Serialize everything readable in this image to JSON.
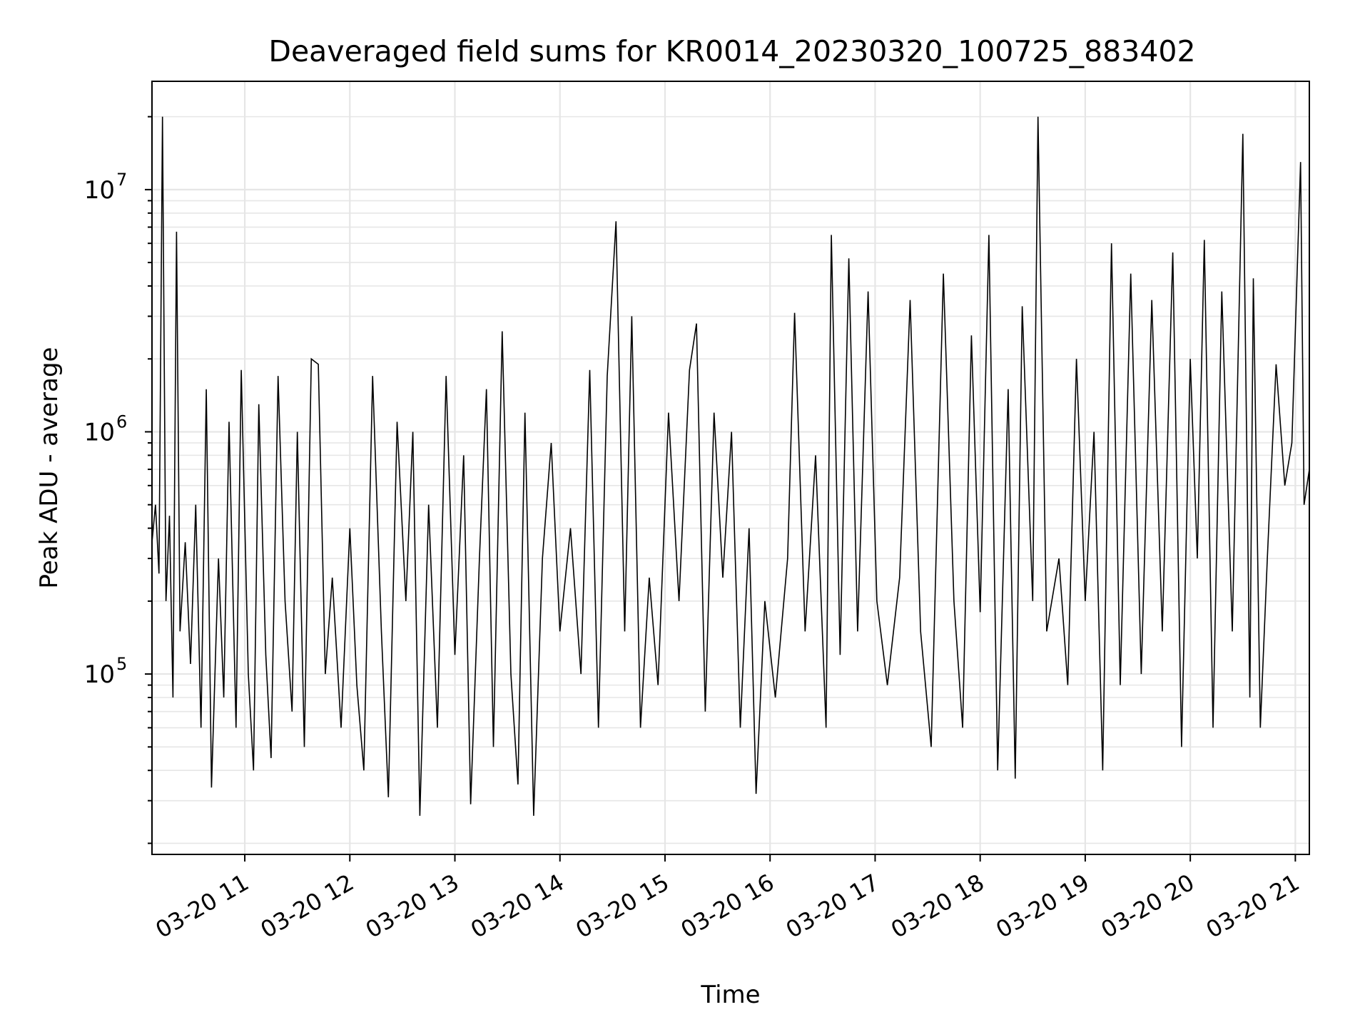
{
  "chart_data": {
    "type": "line",
    "title": "Deaveraged field sums for KR0014_20230320_100725_883402",
    "xlabel": "Time",
    "ylabel": "Peak ADU - average",
    "yscale": "log",
    "ylim": [
      18000,
      28000000
    ],
    "xlim": [
      "2023-03-20 10:07",
      "2023-03-20 21:08"
    ],
    "grid": true,
    "line_color": "#000000",
    "grid_color": "#e6e6e6",
    "x_ticks": [
      {
        "value": "2023-03-20 11:00",
        "label": "03-20 11"
      },
      {
        "value": "2023-03-20 12:00",
        "label": "03-20 12"
      },
      {
        "value": "2023-03-20 13:00",
        "label": "03-20 13"
      },
      {
        "value": "2023-03-20 14:00",
        "label": "03-20 14"
      },
      {
        "value": "2023-03-20 15:00",
        "label": "03-20 15"
      },
      {
        "value": "2023-03-20 16:00",
        "label": "03-20 16"
      },
      {
        "value": "2023-03-20 17:00",
        "label": "03-20 17"
      },
      {
        "value": "2023-03-20 18:00",
        "label": "03-20 18"
      },
      {
        "value": "2023-03-20 19:00",
        "label": "03-20 19"
      },
      {
        "value": "2023-03-20 20:00",
        "label": "03-20 20"
      },
      {
        "value": "2023-03-20 21:00",
        "label": "03-20 21"
      }
    ],
    "y_ticks": [
      {
        "value": 100000,
        "base": "10",
        "exp": "5"
      },
      {
        "value": 1000000,
        "base": "10",
        "exp": "6"
      },
      {
        "value": 10000000,
        "base": "10",
        "exp": "7"
      }
    ],
    "series": [
      {
        "points": [
          [
            "2023-03-20 10:07",
            350000
          ],
          [
            "2023-03-20 10:09",
            500000
          ],
          [
            "2023-03-20 10:11",
            260000
          ],
          [
            "2023-03-20 10:13",
            20000000
          ],
          [
            "2023-03-20 10:15",
            200000
          ],
          [
            "2023-03-20 10:17",
            450000
          ],
          [
            "2023-03-20 10:19",
            80000
          ],
          [
            "2023-03-20 10:21",
            6700000
          ],
          [
            "2023-03-20 10:23",
            150000
          ],
          [
            "2023-03-20 10:26",
            350000
          ],
          [
            "2023-03-20 10:29",
            110000
          ],
          [
            "2023-03-20 10:32",
            500000
          ],
          [
            "2023-03-20 10:35",
            60000
          ],
          [
            "2023-03-20 10:38",
            1500000
          ],
          [
            "2023-03-20 10:41",
            34000
          ],
          [
            "2023-03-20 10:45",
            300000
          ],
          [
            "2023-03-20 10:48",
            80000
          ],
          [
            "2023-03-20 10:51",
            1100000
          ],
          [
            "2023-03-20 10:55",
            60000
          ],
          [
            "2023-03-20 10:58",
            1800000
          ],
          [
            "2023-03-20 11:02",
            100000
          ],
          [
            "2023-03-20 11:05",
            40000
          ],
          [
            "2023-03-20 11:08",
            1300000
          ],
          [
            "2023-03-20 11:12",
            120000
          ],
          [
            "2023-03-20 11:15",
            45000
          ],
          [
            "2023-03-20 11:19",
            1700000
          ],
          [
            "2023-03-20 11:23",
            200000
          ],
          [
            "2023-03-20 11:27",
            70000
          ],
          [
            "2023-03-20 11:30",
            1000000
          ],
          [
            "2023-03-20 11:34",
            50000
          ],
          [
            "2023-03-20 11:38",
            2000000
          ],
          [
            "2023-03-20 11:42",
            1900000
          ],
          [
            "2023-03-20 11:46",
            100000
          ],
          [
            "2023-03-20 11:50",
            250000
          ],
          [
            "2023-03-20 11:55",
            60000
          ],
          [
            "2023-03-20 12:00",
            400000
          ],
          [
            "2023-03-20 12:04",
            90000
          ],
          [
            "2023-03-20 12:08",
            40000
          ],
          [
            "2023-03-20 12:13",
            1700000
          ],
          [
            "2023-03-20 12:18",
            150000
          ],
          [
            "2023-03-20 12:22",
            31000
          ],
          [
            "2023-03-20 12:27",
            1100000
          ],
          [
            "2023-03-20 12:32",
            200000
          ],
          [
            "2023-03-20 12:36",
            1000000
          ],
          [
            "2023-03-20 12:40",
            26000
          ],
          [
            "2023-03-20 12:45",
            500000
          ],
          [
            "2023-03-20 12:50",
            60000
          ],
          [
            "2023-03-20 12:55",
            1700000
          ],
          [
            "2023-03-20 13:00",
            120000
          ],
          [
            "2023-03-20 13:05",
            800000
          ],
          [
            "2023-03-20 13:09",
            29000
          ],
          [
            "2023-03-20 13:14",
            300000
          ],
          [
            "2023-03-20 13:18",
            1500000
          ],
          [
            "2023-03-20 13:22",
            50000
          ],
          [
            "2023-03-20 13:27",
            2600000
          ],
          [
            "2023-03-20 13:32",
            100000
          ],
          [
            "2023-03-20 13:36",
            35000
          ],
          [
            "2023-03-20 13:40",
            1200000
          ],
          [
            "2023-03-20 13:45",
            26000
          ],
          [
            "2023-03-20 13:50",
            300000
          ],
          [
            "2023-03-20 13:55",
            900000
          ],
          [
            "2023-03-20 14:00",
            150000
          ],
          [
            "2023-03-20 14:06",
            400000
          ],
          [
            "2023-03-20 14:12",
            100000
          ],
          [
            "2023-03-20 14:17",
            1800000
          ],
          [
            "2023-03-20 14:22",
            60000
          ],
          [
            "2023-03-20 14:27",
            1700000
          ],
          [
            "2023-03-20 14:32",
            7400000
          ],
          [
            "2023-03-20 14:37",
            150000
          ],
          [
            "2023-03-20 14:41",
            3000000
          ],
          [
            "2023-03-20 14:46",
            60000
          ],
          [
            "2023-03-20 14:51",
            250000
          ],
          [
            "2023-03-20 14:56",
            90000
          ],
          [
            "2023-03-20 15:02",
            1200000
          ],
          [
            "2023-03-20 15:08",
            200000
          ],
          [
            "2023-03-20 15:14",
            1800000
          ],
          [
            "2023-03-20 15:18",
            2800000
          ],
          [
            "2023-03-20 15:23",
            70000
          ],
          [
            "2023-03-20 15:28",
            1200000
          ],
          [
            "2023-03-20 15:33",
            250000
          ],
          [
            "2023-03-20 15:38",
            1000000
          ],
          [
            "2023-03-20 15:43",
            60000
          ],
          [
            "2023-03-20 15:48",
            400000
          ],
          [
            "2023-03-20 15:52",
            32000
          ],
          [
            "2023-03-20 15:57",
            200000
          ],
          [
            "2023-03-20 16:03",
            80000
          ],
          [
            "2023-03-20 16:10",
            300000
          ],
          [
            "2023-03-20 16:14",
            3100000
          ],
          [
            "2023-03-20 16:20",
            150000
          ],
          [
            "2023-03-20 16:26",
            800000
          ],
          [
            "2023-03-20 16:32",
            60000
          ],
          [
            "2023-03-20 16:35",
            6500000
          ],
          [
            "2023-03-20 16:40",
            120000
          ],
          [
            "2023-03-20 16:45",
            5200000
          ],
          [
            "2023-03-20 16:50",
            150000
          ],
          [
            "2023-03-20 16:56",
            3800000
          ],
          [
            "2023-03-20 17:01",
            200000
          ],
          [
            "2023-03-20 17:07",
            90000
          ],
          [
            "2023-03-20 17:14",
            250000
          ],
          [
            "2023-03-20 17:20",
            3500000
          ],
          [
            "2023-03-20 17:26",
            150000
          ],
          [
            "2023-03-20 17:32",
            50000
          ],
          [
            "2023-03-20 17:39",
            4500000
          ],
          [
            "2023-03-20 17:45",
            200000
          ],
          [
            "2023-03-20 17:50",
            60000
          ],
          [
            "2023-03-20 17:55",
            2500000
          ],
          [
            "2023-03-20 18:00",
            180000
          ],
          [
            "2023-03-20 18:05",
            6500000
          ],
          [
            "2023-03-20 18:10",
            40000
          ],
          [
            "2023-03-20 18:16",
            1500000
          ],
          [
            "2023-03-20 18:20",
            37000
          ],
          [
            "2023-03-20 18:24",
            3300000
          ],
          [
            "2023-03-20 18:30",
            200000
          ],
          [
            "2023-03-20 18:33",
            20000000
          ],
          [
            "2023-03-20 18:38",
            150000
          ],
          [
            "2023-03-20 18:45",
            300000
          ],
          [
            "2023-03-20 18:50",
            90000
          ],
          [
            "2023-03-20 18:55",
            2000000
          ],
          [
            "2023-03-20 19:00",
            200000
          ],
          [
            "2023-03-20 19:05",
            1000000
          ],
          [
            "2023-03-20 19:10",
            40000
          ],
          [
            "2023-03-20 19:15",
            6000000
          ],
          [
            "2023-03-20 19:20",
            90000
          ],
          [
            "2023-03-20 19:26",
            4500000
          ],
          [
            "2023-03-20 19:32",
            100000
          ],
          [
            "2023-03-20 19:38",
            3500000
          ],
          [
            "2023-03-20 19:44",
            150000
          ],
          [
            "2023-03-20 19:50",
            5500000
          ],
          [
            "2023-03-20 19:55",
            50000
          ],
          [
            "2023-03-20 20:00",
            2000000
          ],
          [
            "2023-03-20 20:04",
            300000
          ],
          [
            "2023-03-20 20:08",
            6200000
          ],
          [
            "2023-03-20 20:13",
            60000
          ],
          [
            "2023-03-20 20:18",
            3800000
          ],
          [
            "2023-03-20 20:24",
            150000
          ],
          [
            "2023-03-20 20:30",
            17000000
          ],
          [
            "2023-03-20 20:34",
            80000
          ],
          [
            "2023-03-20 20:36",
            4300000
          ],
          [
            "2023-03-20 20:40",
            60000
          ],
          [
            "2023-03-20 20:44",
            300000
          ],
          [
            "2023-03-20 20:49",
            1900000
          ],
          [
            "2023-03-20 20:54",
            600000
          ],
          [
            "2023-03-20 20:58",
            900000
          ],
          [
            "2023-03-20 21:03",
            13000000
          ],
          [
            "2023-03-20 21:05",
            500000
          ],
          [
            "2023-03-20 21:08",
            700000
          ]
        ]
      }
    ]
  }
}
